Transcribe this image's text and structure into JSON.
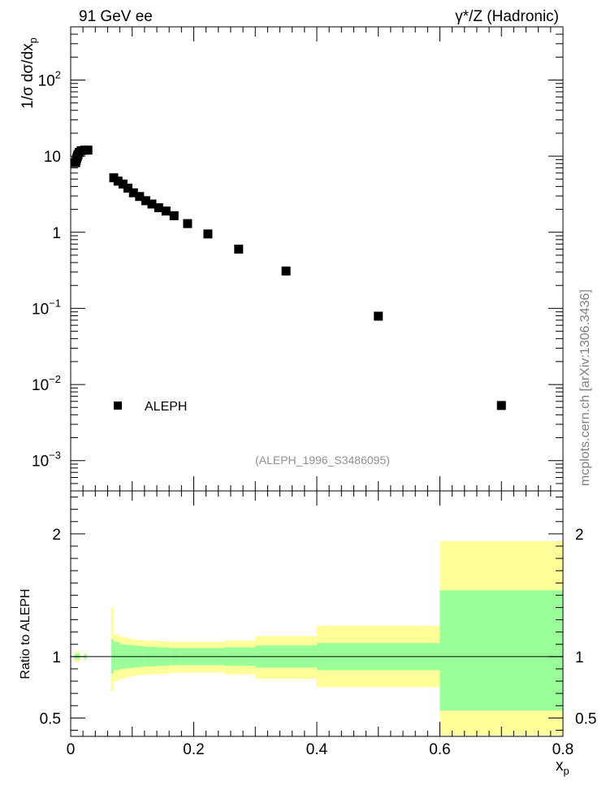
{
  "header": {
    "left": "91 GeV ee",
    "right": "γ*/Z (Hadronic)"
  },
  "watermark": "mcplots.cern.ch [arXiv:1306.3436]",
  "analysis_label": "(ALEPH_1996_S3486095)",
  "chart_data": [
    {
      "type": "scatter",
      "ylabel": "1/σ dσ/dx_p",
      "yscale": "log",
      "xlim": [
        0,
        0.8
      ],
      "ylim": [
        0.0004,
        500
      ],
      "yticks": [
        {
          "value": 0.001,
          "label": "10",
          "exp": "−3"
        },
        {
          "value": 0.01,
          "label": "10",
          "exp": "−2"
        },
        {
          "value": 0.1,
          "label": "10",
          "exp": "−1"
        },
        {
          "value": 1,
          "label": "1",
          "exp": ""
        },
        {
          "value": 10,
          "label": "10",
          "exp": ""
        },
        {
          "value": 100,
          "label": "10",
          "exp": "2"
        }
      ],
      "legend": {
        "position": "bottom-left",
        "entries": [
          "ALEPH"
        ]
      },
      "series": [
        {
          "name": "ALEPH",
          "color": "#000000",
          "x": [
            0.008,
            0.009,
            0.01,
            0.011,
            0.012,
            0.014,
            0.017,
            0.023,
            0.028,
            0.07,
            0.077,
            0.085,
            0.093,
            0.102,
            0.112,
            0.122,
            0.132,
            0.143,
            0.155,
            0.168,
            0.19,
            0.223,
            0.273,
            0.35,
            0.5,
            0.7
          ],
          "y": [
            8.2,
            8.8,
            9.4,
            10.0,
            10.5,
            11.2,
            11.8,
            12.0,
            12.0,
            5.2,
            4.7,
            4.3,
            3.8,
            3.3,
            2.95,
            2.6,
            2.35,
            2.1,
            1.9,
            1.65,
            1.3,
            0.95,
            0.6,
            0.31,
            0.079,
            0.0053
          ]
        }
      ]
    },
    {
      "type": "area",
      "ylabel": "Ratio to ALEPH",
      "xlabel": "x_p",
      "xlim": [
        0,
        0.8
      ],
      "ylim": [
        0.35,
        2.35
      ],
      "xticks": [
        0,
        0.2,
        0.4,
        0.6,
        0.8
      ],
      "yticks": [
        0.5,
        1,
        2
      ],
      "reference_line": 1,
      "colors": {
        "stat": "#99ff99",
        "total": "#ffff99",
        "line": "#000000"
      },
      "bands": [
        {
          "x0": 0.006,
          "x1": 0.012,
          "stat": [
            0.98,
            1.02
          ],
          "total": [
            0.96,
            1.04
          ]
        },
        {
          "x0": 0.012,
          "x1": 0.015,
          "stat": [
            0.975,
            1.025
          ],
          "total": [
            0.95,
            1.05
          ]
        },
        {
          "x0": 0.022,
          "x1": 0.026,
          "stat": [
            0.98,
            1.02
          ],
          "total": [
            0.965,
            1.035
          ]
        },
        {
          "x0": 0.066,
          "x1": 0.07,
          "stat": [
            0.86,
            1.14
          ],
          "total": [
            0.72,
            1.4
          ]
        },
        {
          "x0": 0.07,
          "x1": 0.08,
          "stat": [
            0.89,
            1.12
          ],
          "total": [
            0.8,
            1.18
          ]
        },
        {
          "x0": 0.08,
          "x1": 0.09,
          "stat": [
            0.9,
            1.1
          ],
          "total": [
            0.82,
            1.16
          ]
        },
        {
          "x0": 0.09,
          "x1": 0.1,
          "stat": [
            0.905,
            1.095
          ],
          "total": [
            0.835,
            1.15
          ]
        },
        {
          "x0": 0.1,
          "x1": 0.11,
          "stat": [
            0.91,
            1.09
          ],
          "total": [
            0.845,
            1.14
          ]
        },
        {
          "x0": 0.11,
          "x1": 0.12,
          "stat": [
            0.915,
            1.085
          ],
          "total": [
            0.85,
            1.135
          ]
        },
        {
          "x0": 0.12,
          "x1": 0.14,
          "stat": [
            0.92,
            1.08
          ],
          "total": [
            0.855,
            1.13
          ]
        },
        {
          "x0": 0.14,
          "x1": 0.16,
          "stat": [
            0.925,
            1.075
          ],
          "total": [
            0.86,
            1.125
          ]
        },
        {
          "x0": 0.16,
          "x1": 0.18,
          "stat": [
            0.93,
            1.07
          ],
          "total": [
            0.865,
            1.12
          ]
        },
        {
          "x0": 0.18,
          "x1": 0.2,
          "stat": [
            0.93,
            1.07
          ],
          "total": [
            0.87,
            1.12
          ]
        },
        {
          "x0": 0.2,
          "x1": 0.25,
          "stat": [
            0.93,
            1.07
          ],
          "total": [
            0.87,
            1.12
          ]
        },
        {
          "x0": 0.25,
          "x1": 0.3,
          "stat": [
            0.925,
            1.075
          ],
          "total": [
            0.855,
            1.13
          ]
        },
        {
          "x0": 0.3,
          "x1": 0.4,
          "stat": [
            0.91,
            1.09
          ],
          "total": [
            0.82,
            1.165
          ]
        },
        {
          "x0": 0.4,
          "x1": 0.6,
          "stat": [
            0.89,
            1.11
          ],
          "total": [
            0.75,
            1.25
          ]
        },
        {
          "x0": 0.6,
          "x1": 0.8,
          "stat": [
            0.56,
            1.54
          ],
          "total": [
            0.36,
            1.94
          ]
        }
      ]
    }
  ]
}
